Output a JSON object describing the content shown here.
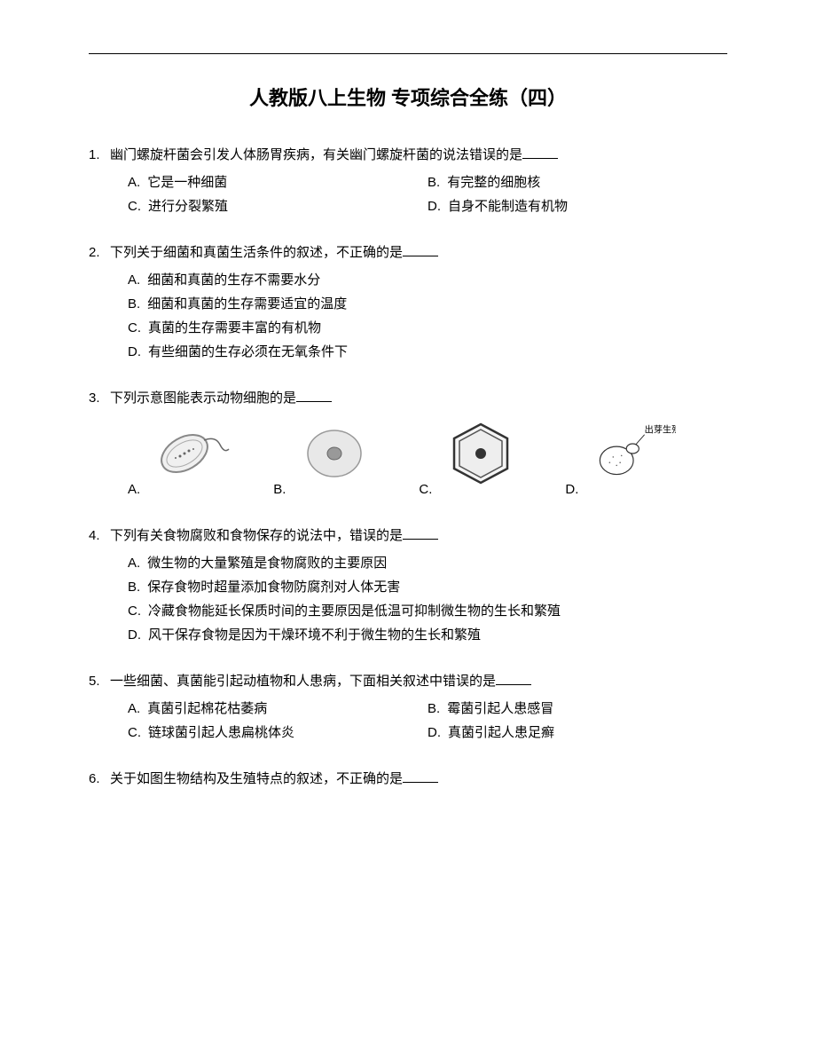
{
  "title": "人教版八上生物 专项综合全练（四）",
  "questions": [
    {
      "num": "1.",
      "stem": "幽门螺旋杆菌会引发人体肠胃疾病，有关幽门螺旋杆菌的说法错误的是",
      "layout": "2col",
      "options": [
        {
          "label": "A.",
          "text": "它是一种细菌"
        },
        {
          "label": "B.",
          "text": "有完整的细胞核"
        },
        {
          "label": "C.",
          "text": "进行分裂繁殖"
        },
        {
          "label": "D.",
          "text": "自身不能制造有机物"
        }
      ]
    },
    {
      "num": "2.",
      "stem": "下列关于细菌和真菌生活条件的叙述，不正确的是",
      "layout": "1col",
      "options": [
        {
          "label": "A.",
          "text": "细菌和真菌的生存不需要水分"
        },
        {
          "label": "B.",
          "text": "细菌和真菌的生存需要适宜的温度"
        },
        {
          "label": "C.",
          "text": "真菌的生存需要丰富的有机物"
        },
        {
          "label": "D.",
          "text": "有些细菌的生存必须在无氧条件下"
        }
      ]
    },
    {
      "num": "3.",
      "stem": "下列示意图能表示动物细胞的是",
      "layout": "cells",
      "cell_label_d": "出芽生殖",
      "options": [
        {
          "label": "A."
        },
        {
          "label": "B."
        },
        {
          "label": "C."
        },
        {
          "label": "D."
        }
      ]
    },
    {
      "num": "4.",
      "stem": "下列有关食物腐败和食物保存的说法中，错误的是",
      "layout": "1col",
      "options": [
        {
          "label": "A.",
          "text": "微生物的大量繁殖是食物腐败的主要原因"
        },
        {
          "label": "B.",
          "text": "保存食物时超量添加食物防腐剂对人体无害"
        },
        {
          "label": "C.",
          "text": "冷藏食物能延长保质时间的主要原因是低温可抑制微生物的生长和繁殖"
        },
        {
          "label": "D.",
          "text": "风干保存食物是因为干燥环境不利于微生物的生长和繁殖"
        }
      ]
    },
    {
      "num": "5.",
      "stem": "一些细菌、真菌能引起动植物和人患病，下面相关叙述中错误的是",
      "layout": "2col",
      "options": [
        {
          "label": "A.",
          "text": "真菌引起棉花枯萎病"
        },
        {
          "label": "B.",
          "text": "霉菌引起人患感冒"
        },
        {
          "label": "C.",
          "text": "链球菌引起人患扁桃体炎"
        },
        {
          "label": "D.",
          "text": "真菌引起人患足癣"
        }
      ]
    },
    {
      "num": "6.",
      "stem": "关于如图生物结构及生殖特点的叙述，不正确的是",
      "layout": "none",
      "options": []
    }
  ]
}
